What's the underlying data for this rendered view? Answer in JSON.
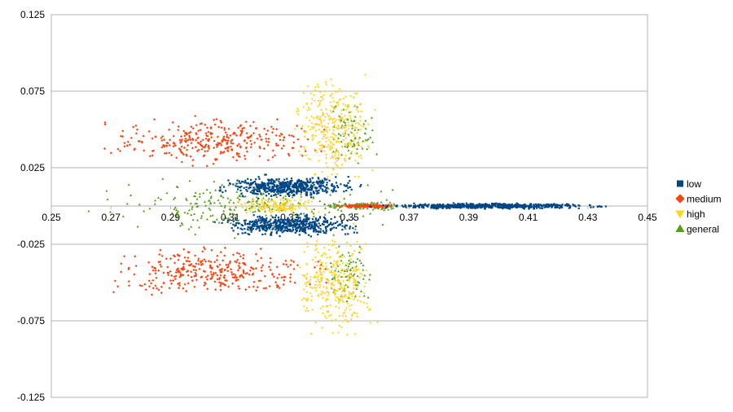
{
  "chart_data": {
    "type": "scatter",
    "title": "",
    "xlabel": "",
    "ylabel": "",
    "xlim": [
      0.25,
      0.45
    ],
    "ylim": [
      -0.125,
      0.125
    ],
    "x_ticks": [
      "0.25",
      "0.27",
      "0.29",
      "0.31",
      "0.33",
      "0.35",
      "0.37",
      "0.39",
      "0.41",
      "0.43",
      "0.45"
    ],
    "y_ticks": [
      "0.125",
      "0.075",
      "0.025",
      "-0.025",
      "-0.075",
      "-0.125"
    ],
    "grid": "horizontal",
    "legend_position": "right",
    "series": [
      {
        "name": "low",
        "color": "#004586",
        "marker": "square",
        "clusters": [
          {
            "x": [
              0.305,
              0.355
            ],
            "y": [
              0.005,
              0.02
            ],
            "count": 520
          },
          {
            "x": [
              0.305,
              0.355
            ],
            "y": [
              -0.02,
              -0.005
            ],
            "count": 520
          },
          {
            "x": [
              0.355,
              0.44
            ],
            "y": [
              -0.002,
              0.002
            ],
            "count": 600
          }
        ]
      },
      {
        "name": "medium",
        "color": "#ff420e",
        "marker": "diamond",
        "clusters": [
          {
            "x": [
              0.265,
              0.345
            ],
            "y": [
              0.025,
              0.06
            ],
            "count": 330
          },
          {
            "x": [
              0.265,
              0.345
            ],
            "y": [
              -0.06,
              -0.025
            ],
            "count": 330
          },
          {
            "x": [
              0.345,
              0.365
            ],
            "y": [
              -0.001,
              0.001
            ],
            "count": 160
          }
        ]
      },
      {
        "name": "high",
        "color": "#ffd320",
        "marker": "triangle-down",
        "clusters": [
          {
            "x": [
              0.33,
              0.36
            ],
            "y": [
              0.01,
              0.09
            ],
            "count": 330
          },
          {
            "x": [
              0.33,
              0.36
            ],
            "y": [
              -0.09,
              -0.01
            ],
            "count": 330
          },
          {
            "x": [
              0.31,
              0.34
            ],
            "y": [
              -0.006,
              0.006
            ],
            "count": 140
          }
        ]
      },
      {
        "name": "general",
        "color": "#579d1c",
        "marker": "triangle-up",
        "clusters": [
          {
            "x": [
              0.26,
              0.37
            ],
            "y": [
              -0.02,
              0.02
            ],
            "count": 260
          },
          {
            "x": [
              0.34,
              0.37
            ],
            "y": [
              -0.003,
              0.003
            ],
            "count": 120
          },
          {
            "x": [
              0.34,
              0.36
            ],
            "y": [
              0.02,
              0.07
            ],
            "count": 80
          },
          {
            "x": [
              0.34,
              0.36
            ],
            "y": [
              -0.07,
              -0.02
            ],
            "count": 80
          }
        ]
      }
    ]
  }
}
